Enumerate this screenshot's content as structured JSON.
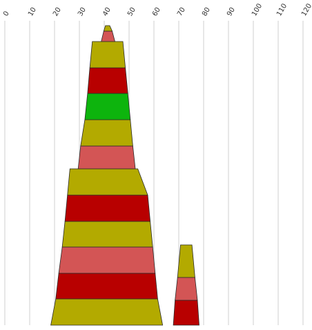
{
  "chart_data": {
    "type": "bar",
    "orientation": "stacked tapered columns",
    "x_axis": {
      "position": "top",
      "ticks": [
        "0",
        "10",
        "20",
        "30",
        "40",
        "50",
        "60",
        "70",
        "80",
        "90",
        "100",
        "110",
        "120"
      ],
      "range": [
        0,
        120
      ]
    },
    "grid": true,
    "colors": {
      "olive": "#b3aa00",
      "red": "#b80000",
      "salmon": "#d35555",
      "green": "#0db40d"
    },
    "stacks": [
      {
        "segments": [
          {
            "color": "olive",
            "left": [
              18.5,
              20.5
            ],
            "right": [
              63.5,
              61.5
            ]
          },
          {
            "color": "red",
            "left": [
              20.5,
              21.7
            ],
            "right": [
              61.5,
              60.5
            ]
          },
          {
            "color": "salmon",
            "left": [
              21.7,
              23.1
            ],
            "right": [
              60.5,
              59.5
            ]
          },
          {
            "color": "olive",
            "left": [
              23.1,
              24.2
            ],
            "right": [
              59.5,
              58.5
            ]
          },
          {
            "color": "red",
            "left": [
              24.2,
              25.2
            ],
            "right": [
              58.5,
              57.5
            ]
          },
          {
            "color": "olive",
            "left": [
              25.2,
              26.2
            ],
            "right": [
              57.5,
              53.5
            ]
          },
          {
            "color": "salmon",
            "left": [
              29.5,
              30.5
            ],
            "right": [
              52.5,
              51.5
            ]
          },
          {
            "color": "olive",
            "left": [
              30.5,
              32.2
            ],
            "right": [
              51.5,
              50.5
            ]
          },
          {
            "color": "green",
            "left": [
              32.2,
              33.3
            ],
            "right": [
              50.5,
              49.5
            ]
          },
          {
            "color": "red",
            "left": [
              33.3,
              34.2
            ],
            "right": [
              49.5,
              48.5
            ]
          },
          {
            "color": "olive",
            "left": [
              34.2,
              35.2
            ],
            "right": [
              48.5,
              47.5
            ]
          },
          {
            "color": "salmon",
            "left": [
              38.8,
              39.8
            ],
            "right": [
              44.3,
              43.2
            ]
          },
          {
            "color": "olive",
            "left": [
              39.8,
              40.5
            ],
            "right": [
              43.2,
              42.2
            ]
          }
        ]
      },
      {
        "segments": [
          {
            "color": "red",
            "left": [
              67.8,
              68.5
            ],
            "right": [
              78.2,
              77.5
            ]
          },
          {
            "color": "salmon",
            "left": [
              68.5,
              69.5
            ],
            "right": [
              77.5,
              76.5
            ]
          },
          {
            "color": "olive",
            "left": [
              69.5,
              70.7
            ],
            "right": [
              76.5,
              75.3
            ]
          }
        ]
      }
    ]
  }
}
